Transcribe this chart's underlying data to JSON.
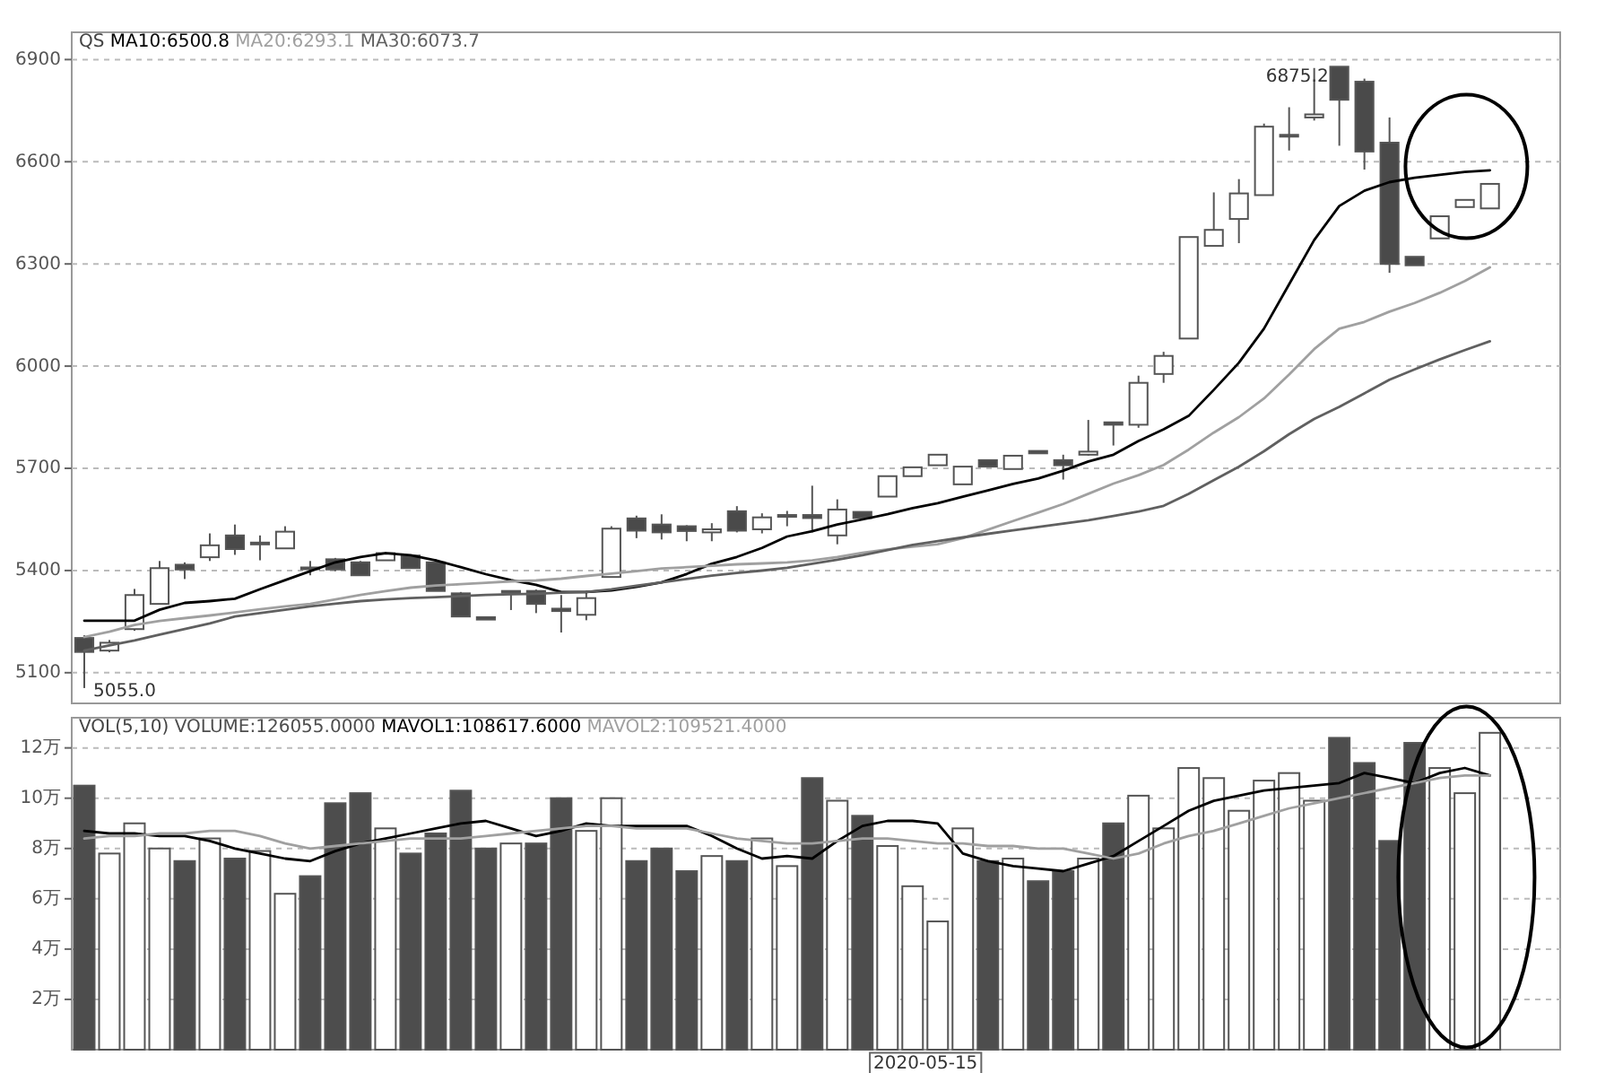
{
  "chart_data": [
    {
      "type": "candlestick",
      "legend_title": "QS",
      "grid": "y",
      "tick_labels": "y",
      "categories": [
        null,
        null,
        null,
        null,
        null,
        null,
        null,
        null,
        null,
        null,
        null,
        null,
        null,
        null,
        null,
        null,
        null,
        null,
        null,
        null,
        null,
        null,
        null,
        null,
        null,
        null,
        null,
        null,
        null,
        null,
        null,
        null,
        null,
        null,
        null,
        null,
        null,
        null,
        null,
        null,
        null,
        null,
        null,
        null,
        null,
        null,
        null,
        null,
        null,
        null,
        null,
        null,
        null,
        null,
        null,
        null,
        null
      ],
      "ohlc": [
        [
          5202,
          5210,
          5055,
          5161
        ],
        [
          5165,
          5196,
          5160,
          5188
        ],
        [
          5228,
          5346,
          5223,
          5328
        ],
        [
          5302,
          5428,
          5302,
          5407
        ],
        [
          5417,
          5424,
          5375,
          5403
        ],
        [
          5439,
          5509,
          5428,
          5474
        ],
        [
          5503,
          5535,
          5446,
          5463
        ],
        [
          5477,
          5503,
          5430,
          5482
        ],
        [
          5465,
          5530,
          5465,
          5514
        ],
        [
          5405,
          5428,
          5386,
          5409
        ],
        [
          5433,
          5437,
          5398,
          5403
        ],
        [
          5424,
          5428,
          5386,
          5386
        ],
        [
          5430,
          5454,
          5430,
          5451
        ],
        [
          5444,
          5447,
          5407,
          5407
        ],
        [
          5424,
          5433,
          5340,
          5340
        ],
        [
          5333,
          5337,
          5265,
          5265
        ],
        [
          5263,
          5263,
          5256,
          5256
        ],
        [
          5337,
          5340,
          5284,
          5340
        ],
        [
          5340,
          5344,
          5275,
          5302
        ],
        [
          5288,
          5328,
          5218,
          5281
        ],
        [
          5270,
          5340,
          5254,
          5319
        ],
        [
          5381,
          5530,
          5381,
          5523
        ],
        [
          5553,
          5561,
          5495,
          5517
        ],
        [
          5535,
          5565,
          5491,
          5512
        ],
        [
          5530,
          5533,
          5486,
          5516
        ],
        [
          5512,
          5539,
          5486,
          5521
        ],
        [
          5574,
          5589,
          5512,
          5517
        ],
        [
          5521,
          5568,
          5509,
          5556
        ],
        [
          5558,
          5575,
          5530,
          5563
        ],
        [
          5563,
          5649,
          5512,
          5554
        ],
        [
          5503,
          5609,
          5477,
          5579
        ],
        [
          5572,
          5572,
          5554,
          5554
        ],
        [
          5617,
          5677,
          5617,
          5677
        ],
        [
          5677,
          5703,
          5677,
          5703
        ],
        [
          5709,
          5740,
          5709,
          5740
        ],
        [
          5653,
          5705,
          5653,
          5705
        ],
        [
          5724,
          5724,
          5705,
          5705
        ],
        [
          5698,
          5737,
          5698,
          5737
        ],
        [
          5751,
          5751,
          5744,
          5744
        ],
        [
          5724,
          5740,
          5667,
          5709
        ],
        [
          5740,
          5842,
          5737,
          5749
        ],
        [
          5835,
          5835,
          5767,
          5828
        ],
        [
          5828,
          5972,
          5819,
          5951
        ],
        [
          5977,
          6042,
          5951,
          6030
        ],
        [
          6081,
          6379,
          6081,
          6379
        ],
        [
          6353,
          6510,
          6353,
          6400
        ],
        [
          6432,
          6549,
          6361,
          6507
        ],
        [
          6502,
          6712,
          6502,
          6703
        ],
        [
          6674,
          6760,
          6633,
          6679
        ],
        [
          6730,
          6875.2,
          6721,
          6739
        ],
        [
          6879,
          6879,
          6647,
          6782
        ],
        [
          6835,
          6844,
          6577,
          6630
        ],
        [
          6656,
          6730,
          6274,
          6300
        ],
        [
          6321,
          6321,
          6296,
          6296
        ],
        [
          6375,
          6440,
          6375,
          6440
        ],
        [
          6467,
          6488,
          6467,
          6488
        ],
        [
          6463,
          6535,
          6463,
          6535
        ]
      ],
      "ylim": [
        5010,
        6980
      ],
      "yticks": [
        5100,
        5400,
        5700,
        6000,
        6300,
        6600,
        6900
      ],
      "series": [
        {
          "name": "MA10:6500.8",
          "type": "line",
          "color": "#000000",
          "values": [
            5253,
            5253,
            5253,
            5285,
            5305,
            5310,
            5317,
            5345,
            5372,
            5398,
            5424,
            5440,
            5451,
            5445,
            5430,
            5410,
            5389,
            5372,
            5358,
            5337,
            5337,
            5342,
            5352,
            5365,
            5390,
            5420,
            5440,
            5466,
            5500,
            5515,
            5535,
            5550,
            5565,
            5583,
            5598,
            5617,
            5635,
            5654,
            5670,
            5693,
            5720,
            5740,
            5780,
            5815,
            5854,
            5930,
            6010,
            6110,
            6240,
            6370,
            6470,
            6515,
            6540,
            6553,
            6562,
            6570,
            6575
          ]
        },
        {
          "name": "MA20:6293.1",
          "type": "line",
          "color": "#a0a0a0",
          "values": [
            5205,
            5220,
            5240,
            5252,
            5260,
            5268,
            5277,
            5286,
            5295,
            5302,
            5315,
            5328,
            5340,
            5350,
            5356,
            5360,
            5364,
            5368,
            5371,
            5376,
            5384,
            5391,
            5398,
            5406,
            5410,
            5414,
            5418,
            5421,
            5424,
            5430,
            5440,
            5452,
            5462,
            5470,
            5477,
            5495,
            5520,
            5545,
            5570,
            5595,
            5625,
            5655,
            5680,
            5710,
            5755,
            5805,
            5850,
            5905,
            5975,
            6050,
            6110,
            6130,
            6160,
            6185,
            6215,
            6250,
            6290
          ]
        },
        {
          "name": "MA30:6073.7",
          "type": "line",
          "color": "#606060",
          "values": [
            5165,
            5180,
            5195,
            5212,
            5228,
            5245,
            5265,
            5275,
            5285,
            5295,
            5303,
            5310,
            5315,
            5319,
            5322,
            5325,
            5328,
            5330,
            5332,
            5335,
            5337,
            5345,
            5355,
            5365,
            5375,
            5385,
            5393,
            5400,
            5408,
            5420,
            5432,
            5445,
            5460,
            5475,
            5486,
            5497,
            5508,
            5518,
            5528,
            5538,
            5548,
            5560,
            5573,
            5590,
            5625,
            5665,
            5705,
            5750,
            5800,
            5845,
            5880,
            5920,
            5960,
            5990,
            6020,
            6047,
            6073
          ]
        }
      ],
      "annotations": [
        "6875.2",
        "5055.0"
      ]
    },
    {
      "type": "bar",
      "legend_title": "VOL(5,10)",
      "grid": "y",
      "tick_labels": "y",
      "categories": [
        null,
        null,
        null,
        null,
        null,
        null,
        null,
        null,
        null,
        null,
        null,
        null,
        null,
        null,
        null,
        null,
        null,
        null,
        null,
        null,
        null,
        null,
        null,
        null,
        null,
        null,
        null,
        null,
        null,
        null,
        null,
        null,
        null,
        null,
        null,
        null,
        null,
        null,
        null,
        null,
        null,
        null,
        null,
        null,
        null,
        null,
        null,
        null,
        null,
        null,
        null,
        null,
        null,
        null,
        null,
        null,
        null
      ],
      "ylim": [
        0,
        13.2
      ],
      "yticks": [
        {
          "value": 2,
          "label": "2万"
        },
        {
          "value": 4,
          "label": "4万"
        },
        {
          "value": 6,
          "label": "6万"
        },
        {
          "value": 8,
          "label": "8万"
        },
        {
          "value": 10,
          "label": "10万"
        },
        {
          "value": 12,
          "label": "12万"
        }
      ],
      "series": [
        {
          "name": "VOLUME:126055.0000",
          "values": [
            10.5,
            7.8,
            9.0,
            8.0,
            7.5,
            8.4,
            7.6,
            7.9,
            6.2,
            6.9,
            9.8,
            10.2,
            8.8,
            7.8,
            8.6,
            10.3,
            8.0,
            8.2,
            8.2,
            10.0,
            8.7,
            10.0,
            7.5,
            8.0,
            7.1,
            7.7,
            7.5,
            8.4,
            7.3,
            10.8,
            9.9,
            9.3,
            8.1,
            6.5,
            5.1,
            8.8,
            7.5,
            7.6,
            6.7,
            7.1,
            7.6,
            9.0,
            10.1,
            8.8,
            11.2,
            10.8,
            9.5,
            10.7,
            11.0,
            9.9,
            12.4,
            11.4,
            8.3,
            12.2,
            11.2,
            10.2,
            12.6
          ],
          "colors": [
            "#4d4d4d",
            "#ffffff",
            "#ffffff",
            "#ffffff",
            "#4d4d4d",
            "#ffffff",
            "#4d4d4d",
            "#ffffff",
            "#ffffff",
            "#4d4d4d",
            "#4d4d4d",
            "#4d4d4d",
            "#ffffff",
            "#4d4d4d",
            "#4d4d4d",
            "#4d4d4d",
            "#4d4d4d",
            "#ffffff",
            "#4d4d4d",
            "#4d4d4d",
            "#ffffff",
            "#ffffff",
            "#4d4d4d",
            "#4d4d4d",
            "#4d4d4d",
            "#ffffff",
            "#4d4d4d",
            "#ffffff",
            "#ffffff",
            "#4d4d4d",
            "#ffffff",
            "#4d4d4d",
            "#ffffff",
            "#ffffff",
            "#ffffff",
            "#ffffff",
            "#4d4d4d",
            "#ffffff",
            "#4d4d4d",
            "#4d4d4d",
            "#ffffff",
            "#4d4d4d",
            "#ffffff",
            "#ffffff",
            "#ffffff",
            "#ffffff",
            "#ffffff",
            "#ffffff",
            "#ffffff",
            "#ffffff",
            "#4d4d4d",
            "#4d4d4d",
            "#4d4d4d",
            "#4d4d4d",
            "#ffffff",
            "#ffffff",
            "#ffffff"
          ]
        },
        {
          "name": "MAVOL1:108617.6000",
          "type": "line",
          "color": "#000000",
          "values": [
            8.7,
            8.6,
            8.6,
            8.5,
            8.5,
            8.3,
            8.0,
            7.8,
            7.6,
            7.5,
            7.9,
            8.2,
            8.4,
            8.6,
            8.8,
            9.0,
            9.1,
            8.8,
            8.5,
            8.7,
            9.0,
            8.9,
            8.9,
            8.9,
            8.9,
            8.5,
            8.0,
            7.6,
            7.7,
            7.6,
            8.3,
            8.9,
            9.1,
            9.1,
            9.0,
            7.8,
            7.5,
            7.3,
            7.2,
            7.1,
            7.4,
            7.7,
            8.3,
            8.9,
            9.5,
            9.9,
            10.1,
            10.3,
            10.4,
            10.5,
            10.6,
            11.0,
            10.8,
            10.6,
            11.0,
            11.2,
            10.9
          ]
        },
        {
          "name": "MAVOL2:109521.4000",
          "type": "line",
          "color": "#a0a0a0",
          "values": [
            8.4,
            8.5,
            8.5,
            8.6,
            8.6,
            8.7,
            8.7,
            8.5,
            8.2,
            8.0,
            8.1,
            8.2,
            8.3,
            8.4,
            8.4,
            8.4,
            8.5,
            8.6,
            8.7,
            8.8,
            8.9,
            8.9,
            8.8,
            8.8,
            8.8,
            8.6,
            8.4,
            8.3,
            8.2,
            8.2,
            8.3,
            8.4,
            8.4,
            8.3,
            8.2,
            8.2,
            8.1,
            8.1,
            8.0,
            8.0,
            7.8,
            7.6,
            7.8,
            8.2,
            8.5,
            8.7,
            9.0,
            9.3,
            9.6,
            9.8,
            10.0,
            10.2,
            10.4,
            10.6,
            10.8,
            10.9,
            10.9
          ]
        }
      ],
      "annotations": [
        "2020-05-15"
      ]
    }
  ]
}
